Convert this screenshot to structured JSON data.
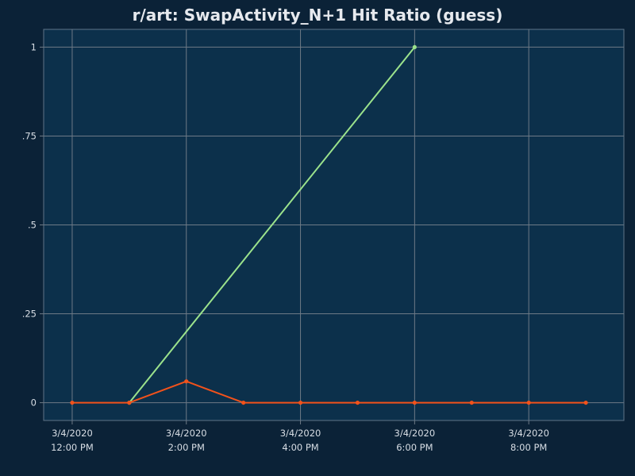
{
  "chart_data": {
    "type": "line",
    "title": "r/art: SwapActivity_N+1 Hit Ratio (guess)",
    "xlabel": "",
    "ylabel": "",
    "x": [
      "2020-03-04T12:00",
      "2020-03-04T13:00",
      "2020-03-04T14:00",
      "2020-03-04T15:00",
      "2020-03-04T16:00",
      "2020-03-04T17:00",
      "2020-03-04T18:00",
      "2020-03-04T19:00",
      "2020-03-04T20:00",
      "2020-03-04T21:00"
    ],
    "xlim": [
      "2020-03-04T11:30",
      "2020-03-04T21:40"
    ],
    "ylim": [
      -0.05,
      1.05
    ],
    "grid": true,
    "legend": "none",
    "x_ticks": [
      {
        "x": "2020-03-04T12:00",
        "date": "3/4/2020",
        "time": "12:00 PM"
      },
      {
        "x": "2020-03-04T14:00",
        "date": "3/4/2020",
        "time": "2:00 PM"
      },
      {
        "x": "2020-03-04T16:00",
        "date": "3/4/2020",
        "time": "4:00 PM"
      },
      {
        "x": "2020-03-04T18:00",
        "date": "3/4/2020",
        "time": "6:00 PM"
      },
      {
        "x": "2020-03-04T20:00",
        "date": "3/4/2020",
        "time": "8:00 PM"
      }
    ],
    "y_ticks": [
      {
        "value": 0,
        "label": "0"
      },
      {
        "value": 0.25,
        "label": ".25"
      },
      {
        "value": 0.5,
        "label": ".5"
      },
      {
        "value": 0.75,
        "label": ".75"
      },
      {
        "value": 1,
        "label": "1"
      }
    ],
    "series": [
      {
        "color": "#9be28c",
        "points": [
          {
            "x": "2020-03-04T13:00",
            "y": 0
          },
          {
            "x": "2020-03-04T18:00",
            "y": 1
          }
        ]
      },
      {
        "color": "#f2521b",
        "points": [
          {
            "x": "2020-03-04T12:00",
            "y": 0
          },
          {
            "x": "2020-03-04T13:00",
            "y": 0
          },
          {
            "x": "2020-03-04T14:00",
            "y": 0.06
          },
          {
            "x": "2020-03-04T15:00",
            "y": 0
          },
          {
            "x": "2020-03-04T16:00",
            "y": 0
          },
          {
            "x": "2020-03-04T17:00",
            "y": 0
          },
          {
            "x": "2020-03-04T18:00",
            "y": 0
          },
          {
            "x": "2020-03-04T19:00",
            "y": 0
          },
          {
            "x": "2020-03-04T20:00",
            "y": 0
          },
          {
            "x": "2020-03-04T21:00",
            "y": 0
          }
        ]
      }
    ]
  },
  "colors": {
    "page_background": "#0b2237",
    "plot_background": "#0c304b",
    "grid": "#6e7a86",
    "text": "#e6e9ee"
  }
}
